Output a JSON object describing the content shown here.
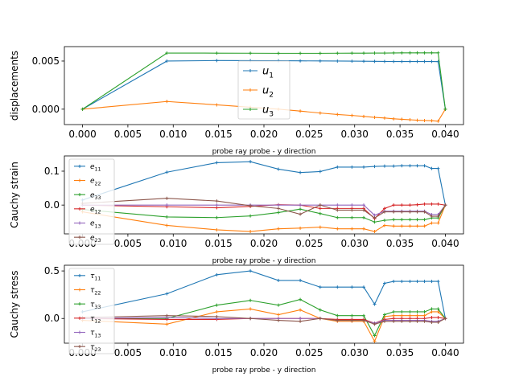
{
  "colors": {
    "c0": "#1f77b4",
    "c1": "#ff7f0e",
    "c2": "#2ca02c",
    "c3": "#d62728",
    "c4": "#9467bd",
    "c5": "#8c564b"
  },
  "chart_data": [
    {
      "type": "line",
      "title": "",
      "xlabel": "probe ray probe - y direction",
      "ylabel": "displacements",
      "xlim": [
        -0.002,
        0.042
      ],
      "ylim": [
        -0.0016,
        0.0065
      ],
      "xticks": [
        "0.000",
        "0.005",
        "0.010",
        "0.015",
        "0.020",
        "0.025",
        "0.030",
        "0.035",
        "0.040"
      ],
      "yticks": [
        {
          "v": 0.0,
          "label": "0.000"
        },
        {
          "v": 0.005,
          "label": "0.005"
        }
      ],
      "legend": "center",
      "x": [
        0.0,
        0.0093,
        0.0148,
        0.0185,
        0.0216,
        0.024,
        0.0262,
        0.0281,
        0.0297,
        0.031,
        0.0322,
        0.0333,
        0.0343,
        0.0352,
        0.0361,
        0.0369,
        0.0377,
        0.0385,
        0.0392,
        0.04
      ],
      "series": [
        {
          "name": "u1",
          "sub": "1",
          "color": "c0",
          "values": [
            0.0,
            0.005,
            0.00505,
            0.00504,
            0.00503,
            0.00502,
            0.00501,
            0.005,
            0.00499,
            0.00498,
            0.00497,
            0.00496,
            0.00495,
            0.00495,
            0.00495,
            0.00495,
            0.00495,
            0.00495,
            0.00494,
            0.0
          ]
        },
        {
          "name": "u2",
          "sub": "2",
          "color": "c1",
          "values": [
            0.0,
            0.0008,
            0.00045,
            0.0002,
            0.0,
            -0.0002,
            -0.0004,
            -0.00055,
            -0.00065,
            -0.00075,
            -0.00085,
            -0.00092,
            -0.001,
            -0.00105,
            -0.0011,
            -0.00115,
            -0.00118,
            -0.0012,
            -0.00125,
            0.0
          ]
        },
        {
          "name": "u3",
          "sub": "3",
          "color": "c2",
          "values": [
            0.0,
            0.00583,
            0.00582,
            0.00581,
            0.0058,
            0.0058,
            0.0058,
            0.00581,
            0.00582,
            0.00582,
            0.00583,
            0.00583,
            0.00584,
            0.00585,
            0.00585,
            0.00585,
            0.00585,
            0.00585,
            0.00585,
            0.0
          ]
        }
      ]
    },
    {
      "type": "line",
      "title": "",
      "xlabel": "probe ray probe - y direction",
      "ylabel": "Cauchy strain",
      "xlim": [
        -0.002,
        0.042
      ],
      "ylim": [
        -0.085,
        0.145
      ],
      "xticks": [
        "0.000",
        "0.005",
        "0.010",
        "0.015",
        "0.020",
        "0.025",
        "0.030",
        "0.035",
        "0.040"
      ],
      "yticks": [
        {
          "v": 0.0,
          "label": "0.0"
        },
        {
          "v": 0.1,
          "label": "0.1"
        }
      ],
      "legend": "left",
      "x": [
        0.0,
        0.0093,
        0.0148,
        0.0185,
        0.0216,
        0.024,
        0.0262,
        0.0281,
        0.0297,
        0.031,
        0.0322,
        0.0333,
        0.0343,
        0.0352,
        0.0361,
        0.0369,
        0.0377,
        0.0385,
        0.0392,
        0.04
      ],
      "series": [
        {
          "name": "e11",
          "sub": "11",
          "color": "c0",
          "values": [
            0.015,
            0.097,
            0.125,
            0.128,
            0.106,
            0.096,
            0.099,
            0.112,
            0.112,
            0.112,
            0.114,
            0.115,
            0.115,
            0.116,
            0.116,
            0.116,
            0.116,
            0.108,
            0.108,
            0.0
          ]
        },
        {
          "name": "e22",
          "sub": "22",
          "color": "c1",
          "values": [
            -0.02,
            -0.06,
            -0.073,
            -0.078,
            -0.07,
            -0.068,
            -0.065,
            -0.07,
            -0.07,
            -0.07,
            -0.078,
            -0.06,
            -0.062,
            -0.062,
            -0.062,
            -0.062,
            -0.062,
            -0.053,
            -0.053,
            0.0
          ]
        },
        {
          "name": "e33",
          "sub": "33",
          "color": "c2",
          "values": [
            -0.013,
            -0.035,
            -0.037,
            -0.032,
            -0.022,
            -0.012,
            -0.025,
            -0.037,
            -0.037,
            -0.037,
            -0.05,
            -0.045,
            -0.043,
            -0.043,
            -0.043,
            -0.043,
            -0.043,
            -0.038,
            -0.038,
            0.0
          ]
        },
        {
          "name": "e12",
          "sub": "12",
          "color": "c3",
          "values": [
            0.0,
            -0.005,
            -0.008,
            -0.004,
            0.001,
            0.0,
            -0.01,
            -0.01,
            -0.01,
            -0.01,
            -0.04,
            -0.01,
            0.0,
            0.0,
            0.0,
            0.001,
            0.003,
            0.003,
            0.003,
            0.0
          ]
        },
        {
          "name": "e13",
          "sub": "13",
          "color": "c4",
          "values": [
            0.0,
            0.0,
            0.0,
            0.0,
            0.0,
            0.0,
            0.0,
            0.0,
            0.0,
            0.0,
            -0.03,
            -0.018,
            -0.018,
            -0.018,
            -0.018,
            -0.018,
            -0.018,
            -0.028,
            -0.028,
            0.0
          ]
        },
        {
          "name": "e23",
          "sub": "23",
          "color": "c5",
          "values": [
            0.005,
            0.02,
            0.012,
            -0.002,
            -0.01,
            -0.027,
            0.0,
            -0.015,
            -0.015,
            -0.015,
            -0.038,
            -0.02,
            -0.02,
            -0.02,
            -0.02,
            -0.02,
            -0.02,
            -0.033,
            -0.033,
            0.0
          ]
        }
      ]
    },
    {
      "type": "line",
      "title": "",
      "xlabel": "probe ray probe - y direction",
      "ylabel": "Cauchy stress",
      "xlim": [
        -0.002,
        0.042
      ],
      "ylim": [
        -0.26,
        0.56
      ],
      "xticks": [
        "0.000",
        "0.005",
        "0.010",
        "0.015",
        "0.020",
        "0.025",
        "0.030",
        "0.035",
        "0.040"
      ],
      "yticks": [
        {
          "v": 0.0,
          "label": "0.0"
        },
        {
          "v": 0.5,
          "label": "0.5"
        }
      ],
      "legend": "left",
      "x": [
        0.0,
        0.0093,
        0.0148,
        0.0185,
        0.0216,
        0.024,
        0.0262,
        0.0281,
        0.0297,
        0.031,
        0.0322,
        0.0333,
        0.0343,
        0.0352,
        0.0361,
        0.0369,
        0.0377,
        0.0385,
        0.0392,
        0.04
      ],
      "series": [
        {
          "name": "t11",
          "sub": "11",
          "color": "c0",
          "values": [
            0.07,
            0.26,
            0.46,
            0.5,
            0.4,
            0.4,
            0.33,
            0.33,
            0.33,
            0.33,
            0.15,
            0.37,
            0.39,
            0.39,
            0.39,
            0.39,
            0.39,
            0.39,
            0.39,
            0.0
          ]
        },
        {
          "name": "t22",
          "sub": "22",
          "color": "c1",
          "values": [
            -0.02,
            -0.06,
            0.07,
            0.1,
            0.04,
            0.09,
            0.0,
            -0.03,
            -0.03,
            -0.03,
            -0.24,
            0.02,
            0.03,
            0.03,
            0.03,
            0.03,
            0.03,
            0.07,
            0.07,
            0.0
          ]
        },
        {
          "name": "t33",
          "sub": "33",
          "color": "c2",
          "values": [
            0.0,
            0.0,
            0.14,
            0.19,
            0.14,
            0.2,
            0.09,
            0.03,
            0.03,
            0.03,
            -0.18,
            0.04,
            0.07,
            0.07,
            0.07,
            0.07,
            0.07,
            0.1,
            0.1,
            0.0
          ]
        },
        {
          "name": "t12",
          "sub": "12",
          "color": "c3",
          "values": [
            0.0,
            -0.01,
            -0.01,
            0.0,
            0.0,
            0.0,
            0.0,
            -0.01,
            -0.01,
            -0.01,
            -0.05,
            -0.01,
            0.0,
            0.0,
            0.0,
            0.0,
            0.0,
            0.01,
            0.01,
            0.0
          ]
        },
        {
          "name": "t13",
          "sub": "13",
          "color": "c4",
          "values": [
            0.0,
            0.01,
            0.0,
            0.0,
            0.0,
            0.0,
            0.0,
            -0.02,
            -0.02,
            -0.02,
            -0.05,
            -0.02,
            -0.02,
            -0.02,
            -0.02,
            -0.02,
            -0.02,
            -0.03,
            -0.03,
            0.0
          ]
        },
        {
          "name": "t23",
          "sub": "23",
          "color": "c5",
          "values": [
            0.01,
            0.03,
            0.02,
            0.0,
            -0.02,
            -0.03,
            0.0,
            -0.02,
            -0.02,
            -0.02,
            -0.06,
            -0.03,
            -0.03,
            -0.03,
            -0.03,
            -0.03,
            -0.03,
            -0.04,
            -0.04,
            0.0
          ]
        }
      ]
    }
  ]
}
